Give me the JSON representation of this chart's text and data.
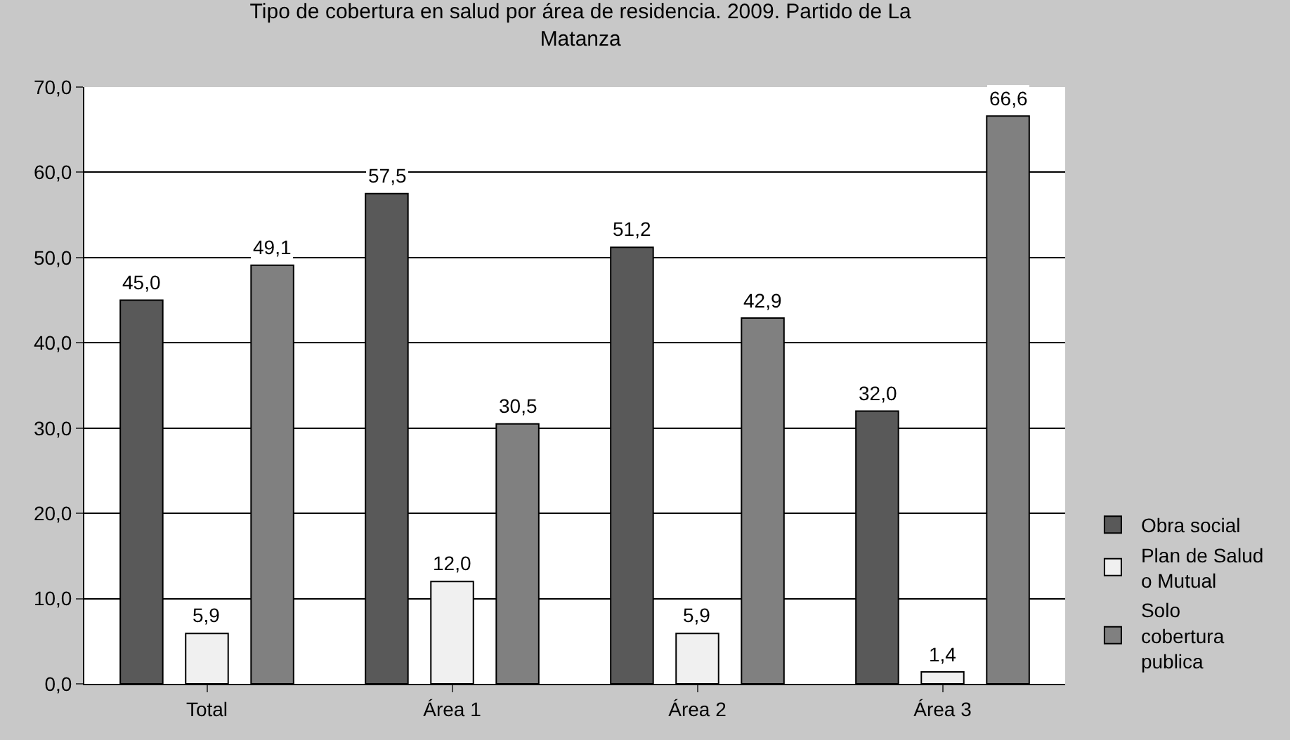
{
  "chart_data": {
    "type": "bar",
    "title": "Tipo de cobertura en salud por área de residencia. 2009. Partido de La Matanza",
    "categories": [
      "Total",
      "Área 1",
      "Área 2",
      "Área 3"
    ],
    "series": [
      {
        "name": "Obra social",
        "color": "#595959",
        "values": [
          45.0,
          57.5,
          51.2,
          32.0
        ],
        "value_labels": [
          "45,0",
          "57,5",
          "51,2",
          "32,0"
        ]
      },
      {
        "name": "Plan de Salud o Mutual",
        "color": "#f0f0f0",
        "values": [
          5.9,
          12.0,
          5.9,
          1.4
        ],
        "value_labels": [
          "5,9",
          "12,0",
          "5,9",
          "1,4"
        ]
      },
      {
        "name": "Solo cobertura publica",
        "color": "#808080",
        "values": [
          49.1,
          30.5,
          42.9,
          66.6
        ],
        "value_labels": [
          "49,1",
          "30,5",
          "42,9",
          "66,6"
        ]
      }
    ],
    "ylim": [
      0,
      70
    ],
    "yticks": [
      {
        "value": 0,
        "label": "0,0"
      },
      {
        "value": 10,
        "label": "10,0"
      },
      {
        "value": 20,
        "label": "20,0"
      },
      {
        "value": 30,
        "label": "30,0"
      },
      {
        "value": 40,
        "label": "40,0"
      },
      {
        "value": 50,
        "label": "50,0"
      },
      {
        "value": 60,
        "label": "60,0"
      },
      {
        "value": 70,
        "label": "70,0"
      }
    ],
    "grid": "y",
    "legend": "right"
  }
}
